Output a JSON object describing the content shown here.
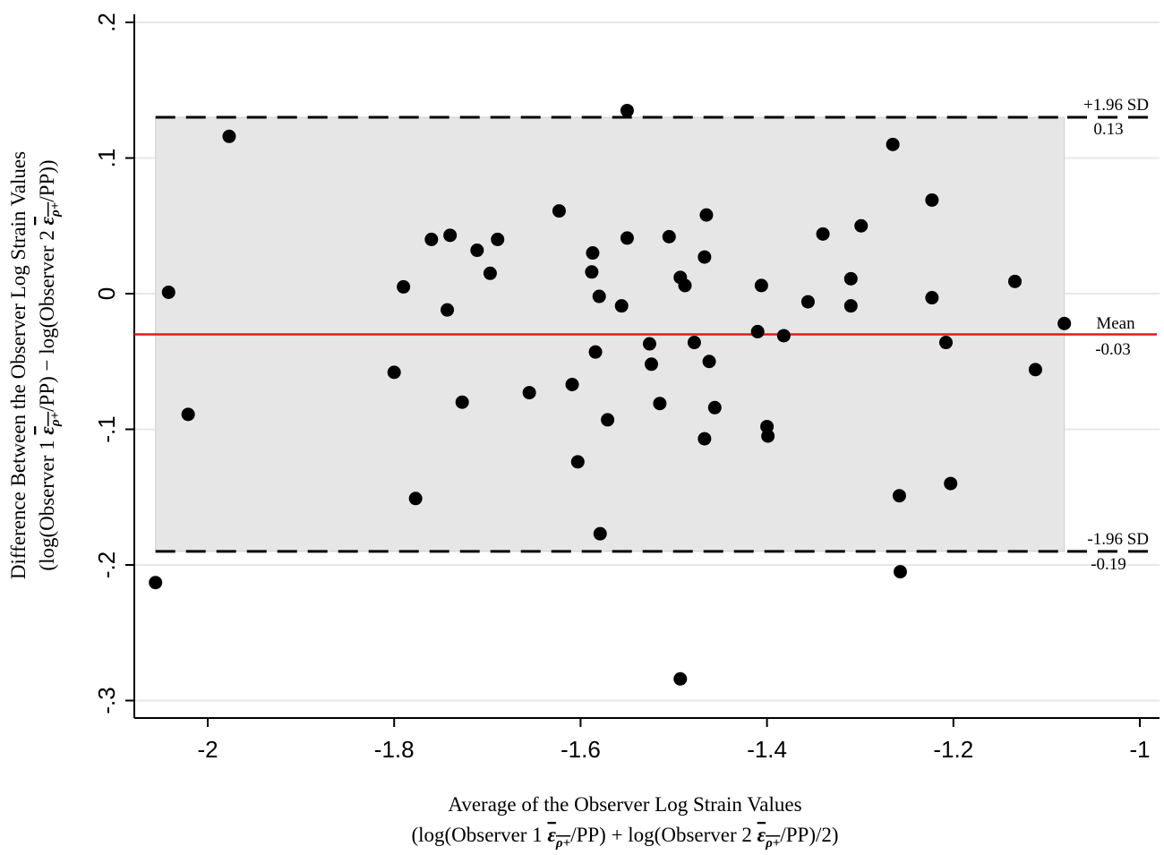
{
  "chart_data": {
    "type": "scatter",
    "xlabel_line1": "Average of the Observer Log Strain Values",
    "xlabel_line2": {
      "part1": "(log(Observer 1 ",
      "eps1": "ε",
      "sub1": "ρ+",
      "part2": "/PP) + log(Observer 2 ",
      "eps2": "ε",
      "sub2": "ρ+",
      "part3": "/PP)/2)"
    },
    "ylabel_line1": "Difference Between the Observer Log Strain Values",
    "ylabel_line2": {
      "part1": "(log(Observer 1 ",
      "eps1": "ε",
      "sub1": "ρ+",
      "part2": "/PP) − log(Observer 2 ",
      "eps2": "ε",
      "sub2": "ρ+",
      "part3": "/PP))"
    },
    "xlim": [
      -2.06,
      -0.99
    ],
    "ylim": [
      -0.315,
      0.2
    ],
    "xticks": [
      -2,
      -1.8,
      -1.6,
      -1.4,
      -1.2,
      -1
    ],
    "xtick_labels": [
      "-2",
      "-1.8",
      "-1.6",
      "-1.4",
      "-1.2",
      "-1"
    ],
    "yticks": [
      -0.3,
      -0.2,
      -0.1,
      0,
      0.1,
      0.2
    ],
    "ytick_labels": [
      "-.3",
      "-.2",
      "-.1",
      "0",
      ".1",
      ".2"
    ],
    "grid": true,
    "mean": -0.03,
    "upper_loa": 0.13,
    "lower_loa": -0.19,
    "shaded_region_x": [
      -2.056,
      -1.081
    ],
    "annotations": {
      "upper_label": "+1.96 SD",
      "upper_value": "0.13",
      "mean_label": "Mean",
      "mean_value": "-0.03",
      "lower_label": "-1.96 SD",
      "lower_value": "-0.19"
    },
    "colors": {
      "mean_line": "#e41a1c",
      "points": "#000000",
      "shade": "#e6e6e6",
      "grid": "#e8e8e8"
    },
    "points": [
      [
        -2.056,
        -0.213
      ],
      [
        -2.042,
        0.001
      ],
      [
        -2.021,
        -0.089
      ],
      [
        -1.977,
        0.116
      ],
      [
        -1.8,
        -0.058
      ],
      [
        -1.79,
        0.005
      ],
      [
        -1.777,
        -0.151
      ],
      [
        -1.76,
        0.04
      ],
      [
        -1.743,
        -0.012
      ],
      [
        -1.74,
        0.043
      ],
      [
        -1.727,
        -0.08
      ],
      [
        -1.711,
        0.032
      ],
      [
        -1.697,
        0.015
      ],
      [
        -1.689,
        0.04
      ],
      [
        -1.655,
        -0.073
      ],
      [
        -1.623,
        0.061
      ],
      [
        -1.609,
        -0.067
      ],
      [
        -1.603,
        -0.124
      ],
      [
        -1.588,
        0.016
      ],
      [
        -1.587,
        0.03
      ],
      [
        -1.584,
        -0.043
      ],
      [
        -1.58,
        -0.002
      ],
      [
        -1.579,
        -0.177
      ],
      [
        -1.571,
        -0.093
      ],
      [
        -1.556,
        -0.009
      ],
      [
        -1.55,
        0.041
      ],
      [
        -1.55,
        0.135
      ],
      [
        -1.526,
        -0.037
      ],
      [
        -1.524,
        -0.052
      ],
      [
        -1.515,
        -0.081
      ],
      [
        -1.505,
        0.042
      ],
      [
        -1.493,
        0.012
      ],
      [
        -1.493,
        -0.284
      ],
      [
        -1.488,
        0.006
      ],
      [
        -1.478,
        -0.036
      ],
      [
        -1.467,
        0.027
      ],
      [
        -1.467,
        -0.107
      ],
      [
        -1.465,
        0.058
      ],
      [
        -1.462,
        -0.05
      ],
      [
        -1.456,
        -0.084
      ],
      [
        -1.41,
        -0.028
      ],
      [
        -1.406,
        0.006
      ],
      [
        -1.4,
        -0.098
      ],
      [
        -1.399,
        -0.105
      ],
      [
        -1.382,
        -0.031
      ],
      [
        -1.356,
        -0.006
      ],
      [
        -1.34,
        0.044
      ],
      [
        -1.31,
        0.011
      ],
      [
        -1.31,
        -0.009
      ],
      [
        -1.299,
        0.05
      ],
      [
        -1.265,
        0.11
      ],
      [
        -1.258,
        -0.149
      ],
      [
        -1.257,
        -0.205
      ],
      [
        -1.223,
        0.069
      ],
      [
        -1.223,
        -0.003
      ],
      [
        -1.208,
        -0.036
      ],
      [
        -1.203,
        -0.14
      ],
      [
        -1.134,
        0.009
      ],
      [
        -1.112,
        -0.056
      ],
      [
        -1.081,
        -0.022
      ]
    ]
  }
}
